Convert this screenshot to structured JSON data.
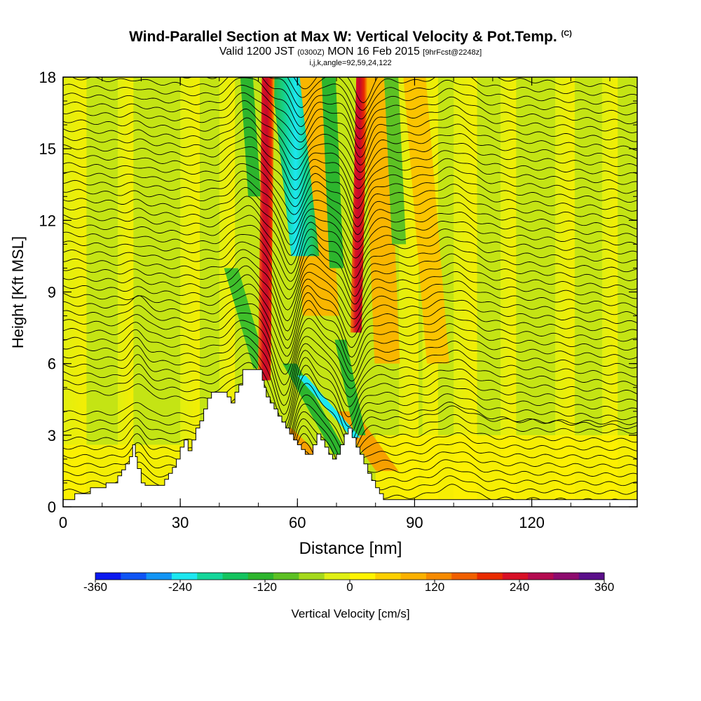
{
  "header": {
    "title": "Wind-Parallel Section at Max W: Vertical Velocity & Pot.Temp.",
    "title_tag": "(C)",
    "subtitle_main": "Valid 1200 JST",
    "subtitle_utc": "(0300Z)",
    "subtitle_date": "MON 16 Feb 2015",
    "subtitle_fcst": "[9hrFcst@2248z]",
    "params": "i,j,k,angle=92,59,24,122"
  },
  "chart_data": {
    "type": "heatmap",
    "xlabel": "Distance [nm]",
    "ylabel": "Height [Kft MSL]",
    "xlim": [
      0,
      147
    ],
    "ylim": [
      0,
      18
    ],
    "x_ticks": [
      "0",
      "30",
      "60",
      "90",
      "120"
    ],
    "y_ticks": [
      "0",
      "3",
      "6",
      "9",
      "12",
      "15",
      "18"
    ],
    "colorbar": {
      "label": "Vertical Velocity [cm/s]",
      "range": [
        -360,
        360
      ],
      "tick_labels": [
        "-360",
        "-240",
        "-120",
        "0",
        "120",
        "240",
        "360"
      ],
      "colors": [
        "#0a18f0",
        "#0f55f5",
        "#1295f5",
        "#1ce7f0",
        "#13d69a",
        "#14c45f",
        "#2db52d",
        "#5dc123",
        "#a5d91b",
        "#e0f013",
        "#fff400",
        "#fcd000",
        "#fbb100",
        "#f68b00",
        "#f16000",
        "#e92b00",
        "#d81026",
        "#b40a50",
        "#8e0b6e",
        "#5b0f8a"
      ]
    },
    "updraft_cores_nm": [
      52,
      76
    ],
    "downdraft_core_nm": 58,
    "terrain_kft": [
      [
        0,
        0.3
      ],
      [
        3,
        0.3
      ],
      [
        3,
        0.55
      ],
      [
        7,
        0.55
      ],
      [
        7,
        0.8
      ],
      [
        11,
        0.8
      ],
      [
        11,
        1
      ],
      [
        14,
        1
      ],
      [
        14,
        1.3
      ],
      [
        15,
        1.3
      ],
      [
        15,
        1.55
      ],
      [
        16,
        1.55
      ],
      [
        16,
        1.8
      ],
      [
        17,
        1.8
      ],
      [
        17,
        2.1
      ],
      [
        17.8,
        2.1
      ],
      [
        17.8,
        2.6
      ],
      [
        18.5,
        2.6
      ],
      [
        18.5,
        2.1
      ],
      [
        19,
        2.1
      ],
      [
        19,
        1.6
      ],
      [
        20,
        1.6
      ],
      [
        20,
        1
      ],
      [
        21,
        1
      ],
      [
        21,
        0.9
      ],
      [
        26,
        0.9
      ],
      [
        26,
        1.15
      ],
      [
        27,
        1.15
      ],
      [
        27,
        1.4
      ],
      [
        28,
        1.4
      ],
      [
        28,
        1.65
      ],
      [
        29,
        1.65
      ],
      [
        29,
        2
      ],
      [
        30,
        2
      ],
      [
        30,
        2.5
      ],
      [
        31,
        2.5
      ],
      [
        31,
        2.8
      ],
      [
        32,
        2.8
      ],
      [
        32,
        2.35
      ],
      [
        33,
        2.35
      ],
      [
        33,
        2.8
      ],
      [
        34,
        2.8
      ],
      [
        34,
        3.3
      ],
      [
        35,
        3.3
      ],
      [
        35,
        3.6
      ],
      [
        36,
        3.6
      ],
      [
        36,
        4.1
      ],
      [
        37,
        4.1
      ],
      [
        37,
        4.55
      ],
      [
        38,
        4.55
      ],
      [
        38,
        4.8
      ],
      [
        42,
        4.8
      ],
      [
        42,
        4.6
      ],
      [
        43,
        4.6
      ],
      [
        43,
        4.35
      ],
      [
        44,
        4.35
      ],
      [
        44,
        4.8
      ],
      [
        45,
        4.8
      ],
      [
        45,
        5.1
      ],
      [
        46,
        5.1
      ],
      [
        46,
        5.75
      ],
      [
        51,
        5.75
      ],
      [
        51,
        5.3
      ],
      [
        51.5,
        5.3
      ],
      [
        51.5,
        5
      ],
      [
        52,
        5
      ],
      [
        52,
        4.6
      ],
      [
        53,
        4.6
      ],
      [
        53,
        4.35
      ],
      [
        54,
        4.35
      ],
      [
        54,
        4.1
      ],
      [
        55,
        4.1
      ],
      [
        55,
        3.8
      ],
      [
        56,
        3.8
      ],
      [
        56,
        3.55
      ],
      [
        57,
        3.55
      ],
      [
        57,
        3.3
      ],
      [
        58,
        3.3
      ],
      [
        58,
        3.05
      ],
      [
        59,
        3.05
      ],
      [
        59,
        2.8
      ],
      [
        60,
        2.8
      ],
      [
        60,
        2.6
      ],
      [
        61,
        2.6
      ],
      [
        61,
        2.4
      ],
      [
        62,
        2.4
      ],
      [
        62,
        2.2
      ],
      [
        64,
        2.2
      ],
      [
        64,
        2.6
      ],
      [
        65,
        2.6
      ],
      [
        65,
        3.05
      ],
      [
        66,
        3.05
      ],
      [
        66,
        2.8
      ],
      [
        67,
        2.8
      ],
      [
        67,
        2.5
      ],
      [
        68,
        2.5
      ],
      [
        68,
        2.2
      ],
      [
        69,
        2.2
      ],
      [
        69,
        2.0
      ],
      [
        70,
        2.0
      ],
      [
        70,
        2.2
      ],
      [
        71,
        2.2
      ],
      [
        71,
        2.6
      ],
      [
        72,
        2.6
      ],
      [
        72,
        3.05
      ],
      [
        73,
        3.05
      ],
      [
        73,
        3.3
      ],
      [
        74,
        3.3
      ],
      [
        74,
        2.9
      ],
      [
        75,
        2.9
      ],
      [
        75,
        2.5
      ],
      [
        76,
        2.5
      ],
      [
        76,
        2.2
      ],
      [
        77,
        2.2
      ],
      [
        77,
        1.8
      ],
      [
        78,
        1.8
      ],
      [
        78,
        1.4
      ],
      [
        79,
        1.4
      ],
      [
        79,
        1.1
      ],
      [
        80,
        1.1
      ],
      [
        80,
        0.8
      ],
      [
        81,
        0.8
      ],
      [
        81,
        0.55
      ],
      [
        82,
        0.55
      ],
      [
        82,
        0.3
      ],
      [
        147,
        0.3
      ],
      [
        147,
        0
      ]
    ]
  }
}
